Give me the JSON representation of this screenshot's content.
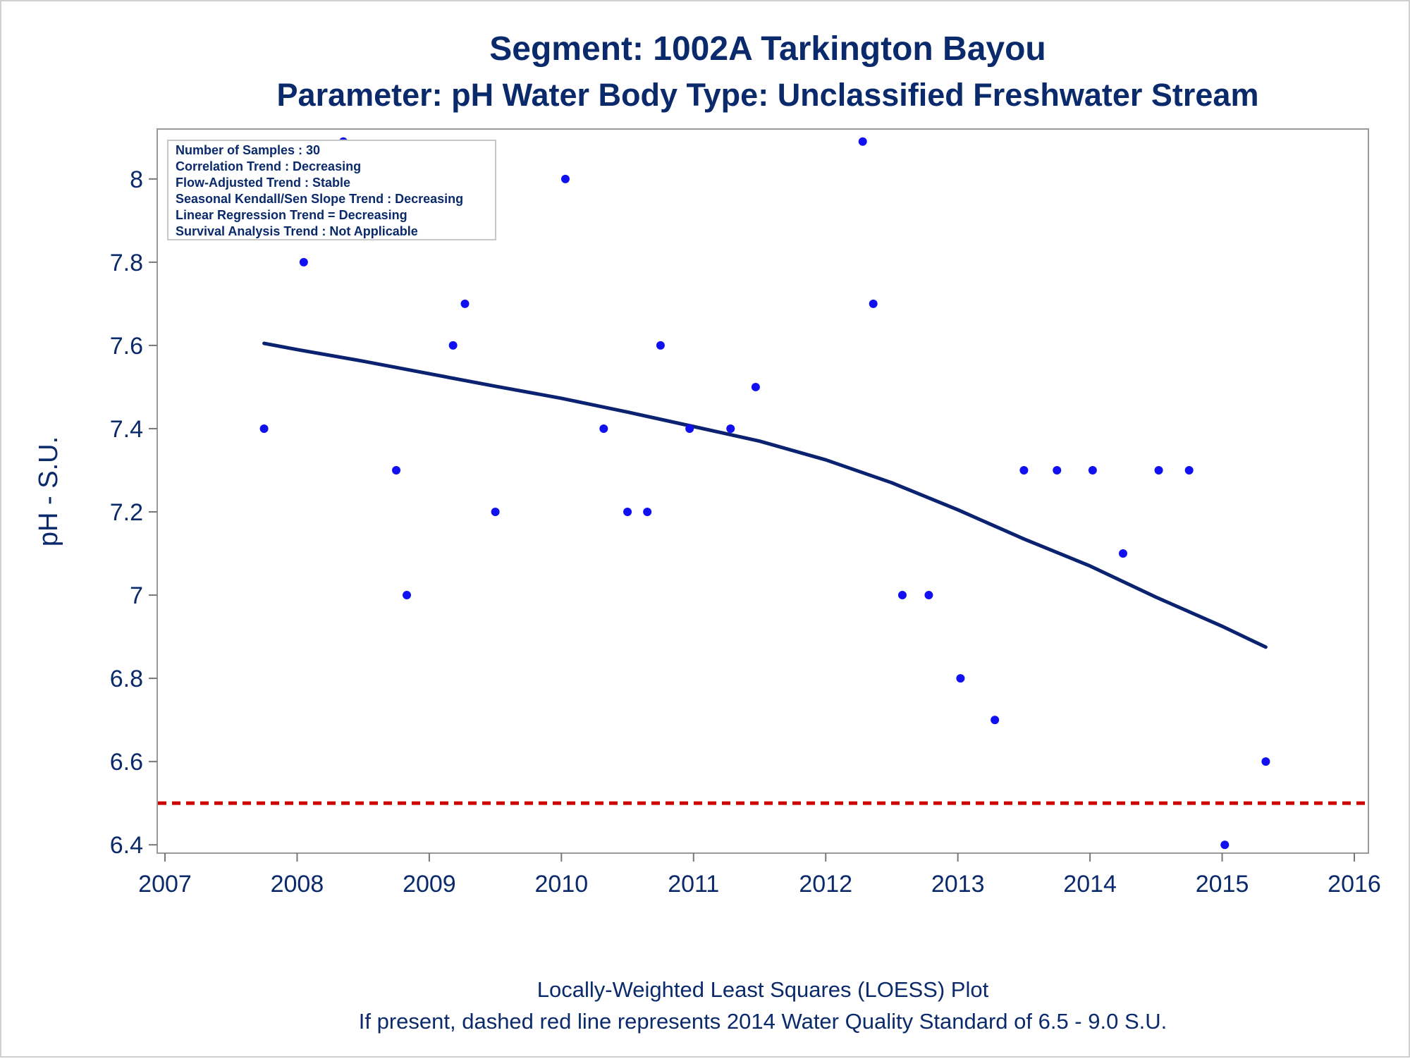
{
  "chart_data": {
    "type": "scatter",
    "title": "Segment: 1002A  Tarkington Bayou",
    "subtitle": "Parameter: pH   Water Body Type: Unclassified Freshwater Stream",
    "xlabel": "",
    "ylabel": "pH - S.U.",
    "xlim": [
      2007,
      2016
    ],
    "ylim": [
      6.38,
      8.12
    ],
    "xticks": [
      2007,
      2008,
      2009,
      2010,
      2011,
      2012,
      2013,
      2014,
      2015,
      2016
    ],
    "yticks": [
      6.4,
      6.6,
      6.8,
      7,
      7.2,
      7.4,
      7.6,
      7.8,
      8
    ],
    "ytick_labels": [
      "6.4",
      "6.6",
      "6.8",
      "7",
      "7.2",
      "7.4",
      "7.6",
      "7.8",
      "8"
    ],
    "grid": false,
    "series": [
      {
        "name": "Samples",
        "kind": "scatter",
        "color": "#1010f0",
        "x": [
          2007.75,
          2008.05,
          2008.35,
          2008.75,
          2008.83,
          2009.18,
          2009.27,
          2009.5,
          2010.03,
          2010.32,
          2010.5,
          2010.65,
          2010.75,
          2010.97,
          2011.28,
          2011.47,
          2012.28,
          2012.36,
          2012.58,
          2012.78,
          2013.02,
          2013.28,
          2013.5,
          2013.75,
          2014.02,
          2014.25,
          2014.52,
          2014.75,
          2015.02,
          2015.33
        ],
        "y": [
          7.4,
          7.8,
          8.09,
          7.3,
          7.0,
          7.6,
          7.7,
          7.2,
          8.0,
          7.4,
          7.2,
          7.2,
          7.6,
          7.4,
          7.4,
          7.5,
          8.09,
          7.7,
          7.0,
          7.0,
          6.8,
          6.7,
          7.3,
          7.3,
          7.3,
          7.1,
          7.3,
          7.3,
          6.4,
          6.6
        ]
      },
      {
        "name": "LOESS fit",
        "kind": "line",
        "color": "#0a2270",
        "x": [
          2007.75,
          2008.0,
          2008.5,
          2009.0,
          2009.5,
          2010.0,
          2010.5,
          2011.0,
          2011.5,
          2012.0,
          2012.5,
          2013.0,
          2013.5,
          2014.0,
          2014.5,
          2015.0,
          2015.33
        ],
        "y": [
          7.605,
          7.59,
          7.562,
          7.532,
          7.502,
          7.473,
          7.44,
          7.405,
          7.37,
          7.325,
          7.27,
          7.205,
          7.135,
          7.07,
          6.995,
          6.925,
          6.875
        ]
      }
    ],
    "reference_line": {
      "y": 6.5,
      "color": "#cc0000",
      "style": "dashed"
    }
  },
  "inset": {
    "lines": [
      "Number of Samples : 30",
      "Correlation Trend : Decreasing",
      "Flow-Adjusted Trend : Stable",
      "Seasonal Kendall/Sen Slope Trend : Decreasing",
      "Linear Regression Trend = Decreasing",
      "Survival Analysis Trend : Not Applicable"
    ]
  },
  "footnotes": {
    "line1": "Locally-Weighted Least Squares (LOESS) Plot",
    "line2": "If present, dashed red line represents 2014 Water Quality Standard of 6.5 - 9.0 S.U."
  }
}
